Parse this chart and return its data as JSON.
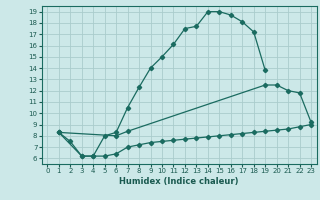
{
  "xlabel": "Humidex (Indice chaleur)",
  "bg_color": "#cce8e8",
  "grid_color": "#aacccc",
  "line_color": "#1a6b60",
  "xlim": [
    -0.5,
    23.5
  ],
  "ylim": [
    5.5,
    19.5
  ],
  "xticks": [
    0,
    1,
    2,
    3,
    4,
    5,
    6,
    7,
    8,
    9,
    10,
    11,
    12,
    13,
    14,
    15,
    16,
    17,
    18,
    19,
    20,
    21,
    22,
    23
  ],
  "yticks": [
    6,
    7,
    8,
    9,
    10,
    11,
    12,
    13,
    14,
    15,
    16,
    17,
    18,
    19
  ],
  "line1_x": [
    1,
    2,
    3,
    4,
    5,
    6,
    7,
    8,
    9,
    10,
    11,
    12,
    13,
    14,
    15,
    16,
    17,
    18,
    19
  ],
  "line1_y": [
    8.3,
    7.5,
    6.2,
    6.2,
    8.0,
    8.3,
    10.5,
    12.3,
    14.0,
    15.0,
    16.1,
    17.5,
    17.7,
    19.0,
    19.0,
    18.7,
    18.1,
    17.2,
    13.8
  ],
  "line2_x": [
    1,
    6,
    7,
    19,
    20,
    21,
    22,
    23
  ],
  "line2_y": [
    8.3,
    8.0,
    8.4,
    12.5,
    12.5,
    12.0,
    11.8,
    9.2
  ],
  "line3_x": [
    1,
    3,
    4,
    5,
    6,
    7,
    8,
    9,
    10,
    11,
    12,
    13,
    14,
    15,
    16,
    17,
    18,
    19,
    20,
    21,
    22,
    23
  ],
  "line3_y": [
    8.3,
    6.2,
    6.2,
    6.2,
    6.4,
    7.0,
    7.2,
    7.4,
    7.5,
    7.6,
    7.7,
    7.8,
    7.9,
    8.0,
    8.1,
    8.2,
    8.3,
    8.4,
    8.5,
    8.6,
    8.8,
    9.0
  ]
}
